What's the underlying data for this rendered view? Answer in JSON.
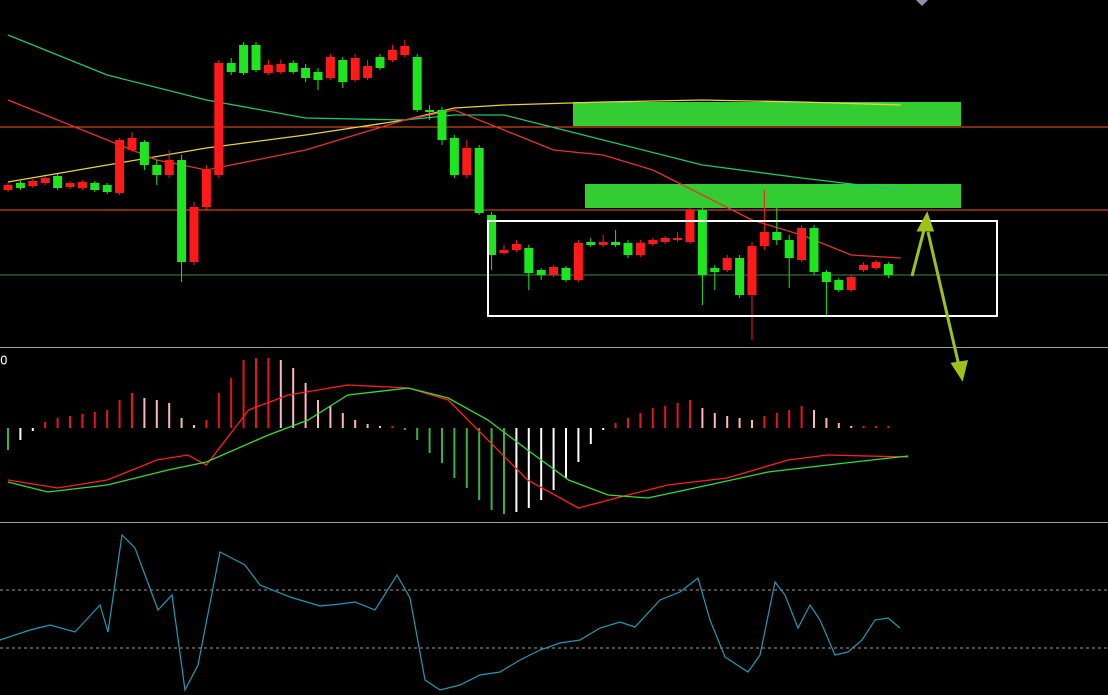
{
  "chart_data": [
    {
      "type": "candlestick",
      "xlim": [
        -0.645,
        88.71
      ],
      "ylim": [
        2,
        350
      ],
      "up_color": "#ff1a1a",
      "down_color": "#1ee61e",
      "x": [
        0,
        1,
        2,
        3,
        4,
        5,
        6,
        7,
        8,
        9,
        10,
        11,
        12,
        13,
        14,
        15,
        16,
        17,
        18,
        19,
        20,
        21,
        22,
        23,
        24,
        25,
        26,
        27,
        28,
        29,
        30,
        31,
        32,
        33,
        34,
        35,
        36,
        37,
        38,
        39,
        40,
        41,
        42,
        43,
        44,
        45,
        46,
        47,
        48,
        49,
        50,
        51,
        52,
        53,
        54,
        55,
        56,
        57,
        58,
        59,
        60,
        61,
        62,
        63,
        64,
        65,
        66,
        67,
        68,
        69,
        70,
        71
      ],
      "open": [
        160,
        167,
        164,
        167,
        174,
        163,
        162,
        167,
        165,
        157,
        200,
        208,
        185,
        175,
        190,
        88,
        143,
        175,
        287,
        305,
        305,
        277,
        278,
        287,
        282,
        278,
        272,
        290,
        270,
        272,
        293,
        290,
        295,
        293,
        240,
        240,
        212,
        175,
        202,
        135,
        97,
        100,
        102,
        80,
        75,
        82,
        70,
        108,
        105,
        108,
        107,
        95,
        106,
        108,
        110,
        108,
        140,
        82,
        80,
        92,
        55,
        104,
        118,
        110,
        90,
        122,
        78,
        70,
        60,
        80,
        82,
        86
      ],
      "high": [
        167,
        169,
        171,
        174,
        176,
        169,
        170,
        169,
        167,
        212,
        218,
        210,
        190,
        200,
        195,
        148,
        185,
        290,
        292,
        308,
        308,
        290,
        290,
        290,
        286,
        282,
        296,
        293,
        296,
        290,
        296,
        305,
        310,
        296,
        245,
        243,
        215,
        210,
        205,
        138,
        105,
        110,
        105,
        82,
        85,
        84,
        110,
        112,
        115,
        120,
        110,
        110,
        112,
        114,
        118,
        142,
        142,
        85,
        95,
        95,
        108,
        160,
        145,
        115,
        125,
        125,
        80,
        72,
        75,
        88,
        90,
        88
      ],
      "low": [
        158,
        160,
        162,
        165,
        160,
        161,
        160,
        158,
        156,
        155,
        198,
        180,
        165,
        172,
        68,
        85,
        140,
        172,
        275,
        275,
        278,
        275,
        276,
        276,
        268,
        260,
        270,
        262,
        268,
        270,
        280,
        288,
        293,
        238,
        230,
        205,
        172,
        172,
        135,
        80,
        95,
        98,
        60,
        70,
        73,
        68,
        68,
        103,
        103,
        103,
        92,
        93,
        104,
        106,
        108,
        106,
        45,
        60,
        78,
        52,
        10,
        100,
        105,
        62,
        88,
        75,
        35,
        58,
        58,
        78,
        80,
        72
      ],
      "close": [
        165,
        162,
        169,
        172,
        162,
        167,
        168,
        160,
        158,
        210,
        212,
        185,
        175,
        190,
        88,
        143,
        180,
        287,
        278,
        277,
        280,
        285,
        286,
        278,
        272,
        270,
        293,
        268,
        292,
        284,
        282,
        300,
        304,
        240,
        238,
        210,
        175,
        202,
        137,
        95,
        100,
        106,
        77,
        75,
        83,
        70,
        107,
        105,
        108,
        105,
        95,
        107,
        110,
        112,
        112,
        140,
        75,
        78,
        92,
        55,
        104,
        118,
        110,
        92,
        122,
        78,
        68,
        60,
        73,
        85,
        88,
        75
      ],
      "lines": [
        {
          "color": "#19c86e",
          "x": [
            0,
            8,
            16,
            24,
            32,
            36,
            40,
            48,
            56,
            64,
            72
          ],
          "values": [
            315,
            275,
            250,
            232,
            230,
            235,
            235,
            210,
            185,
            172,
            160
          ]
        },
        {
          "color": "#e6d23c",
          "x": [
            0,
            8,
            16,
            24,
            32,
            36,
            40,
            48,
            56,
            64,
            72
          ],
          "values": [
            168,
            185,
            202,
            215,
            230,
            242,
            245,
            248,
            250,
            248,
            245
          ]
        },
        {
          "color": "#e6322d",
          "x": [
            0,
            8,
            12,
            16,
            20,
            24,
            28,
            32,
            36,
            40,
            44,
            48,
            52,
            56,
            60,
            64,
            68,
            72
          ],
          "values": [
            250,
            210,
            190,
            180,
            190,
            200,
            215,
            230,
            240,
            220,
            200,
            195,
            180,
            155,
            130,
            115,
            95,
            92
          ]
        }
      ],
      "hlines": [
        {
          "value": 223,
          "color": "#ff5a1e"
        },
        {
          "value": 140,
          "color": "#ff5a1e"
        },
        {
          "value": 75,
          "color": "#3c8c3c"
        }
      ]
    },
    {
      "type": "macd",
      "xlim": [
        -0.645,
        88.71
      ],
      "ylim": [
        -94,
        78
      ],
      "label": "0",
      "colors": {
        "up_rising": "#e8141e",
        "up_falling": "#ffb4c4",
        "down_falling": "#3cb043",
        "down_rising": "#ffffff"
      },
      "histogram": {
        "x": [
          0,
          1,
          2,
          3,
          4,
          5,
          6,
          7,
          8,
          9,
          10,
          11,
          12,
          13,
          14,
          15,
          16,
          17,
          18,
          19,
          20,
          21,
          22,
          23,
          24,
          25,
          26,
          27,
          28,
          29,
          30,
          31,
          32,
          33,
          34,
          35,
          36,
          37,
          38,
          39,
          40,
          41,
          42,
          43,
          44,
          45,
          46,
          47,
          48,
          49,
          50,
          51,
          52,
          53,
          54,
          55,
          56,
          57,
          58,
          59,
          60,
          61,
          62,
          63,
          64,
          65,
          66,
          67,
          68,
          69,
          70,
          71
        ],
        "values": [
          -22,
          -12,
          -3,
          6,
          10,
          12,
          14,
          16,
          18,
          28,
          35,
          30,
          28,
          25,
          10,
          3,
          8,
          35,
          50,
          68,
          70,
          70,
          68,
          60,
          45,
          28,
          22,
          15,
          8,
          4,
          2,
          2,
          -2,
          -12,
          -25,
          -35,
          -50,
          -60,
          -72,
          -82,
          -86,
          -84,
          -80,
          -72,
          -62,
          -50,
          -34,
          -16,
          -2,
          5,
          10,
          15,
          20,
          22,
          25,
          28,
          20,
          15,
          12,
          10,
          8,
          12,
          15,
          18,
          22,
          18,
          10,
          5,
          2,
          2,
          2,
          2
        ]
      },
      "lines": [
        {
          "color": "#ff1e1e",
          "x": [
            0,
            4,
            8,
            12,
            14.5,
            16,
            19.4,
            22.6,
            27.4,
            32.3,
            35.5,
            38.7,
            41.9,
            46,
            50,
            53.2,
            58,
            62.9,
            66.1,
            72.6
          ],
          "values": [
            -52,
            -60,
            -52,
            -32,
            -27,
            -37,
            18,
            33,
            43,
            40,
            28,
            -12,
            -52,
            -80,
            -67,
            -57,
            -50,
            -32,
            -27,
            -29
          ]
        },
        {
          "color": "#32dc32",
          "x": [
            0,
            3.2,
            8,
            12.9,
            16,
            21,
            24.2,
            27.4,
            32.3,
            35.5,
            38.7,
            41.9,
            45.2,
            48.4,
            51.6,
            56.5,
            61.3,
            66.1,
            72.6
          ],
          "values": [
            -54,
            -64,
            -57,
            -42,
            -34,
            -7,
            8,
            33,
            40,
            30,
            8,
            -22,
            -52,
            -67,
            -70,
            -57,
            -44,
            -37,
            -28
          ]
        }
      ]
    },
    {
      "type": "line",
      "xlim": [
        0,
        1108
      ],
      "ylim": [
        0,
        170
      ],
      "color": "#1e9bb4",
      "hlines": [
        {
          "value": 105,
          "color": "#9a9a9a"
        },
        {
          "value": 47,
          "color": "#9a9a9a"
        }
      ],
      "x": [
        0,
        30,
        50,
        75,
        100,
        108,
        122,
        135,
        158,
        172,
        185,
        198,
        220,
        245,
        260,
        290,
        320,
        340,
        355,
        375,
        397,
        410,
        425,
        440,
        460,
        480,
        500,
        520,
        540,
        560,
        580,
        600,
        620,
        635,
        660,
        680,
        698,
        710,
        725,
        748,
        760,
        775,
        785,
        798,
        810,
        820,
        835,
        848,
        862,
        875,
        888,
        900
      ],
      "values": [
        55,
        65,
        70,
        63,
        90,
        63,
        160,
        147,
        85,
        100,
        5,
        30,
        143,
        130,
        110,
        98,
        89,
        91,
        93,
        85,
        120,
        97,
        15,
        5,
        10,
        20,
        23,
        35,
        45,
        52,
        55,
        67,
        73,
        68,
        95,
        103,
        117,
        75,
        38,
        23,
        40,
        113,
        100,
        67,
        90,
        75,
        40,
        43,
        55,
        75,
        77,
        67
      ]
    }
  ]
}
